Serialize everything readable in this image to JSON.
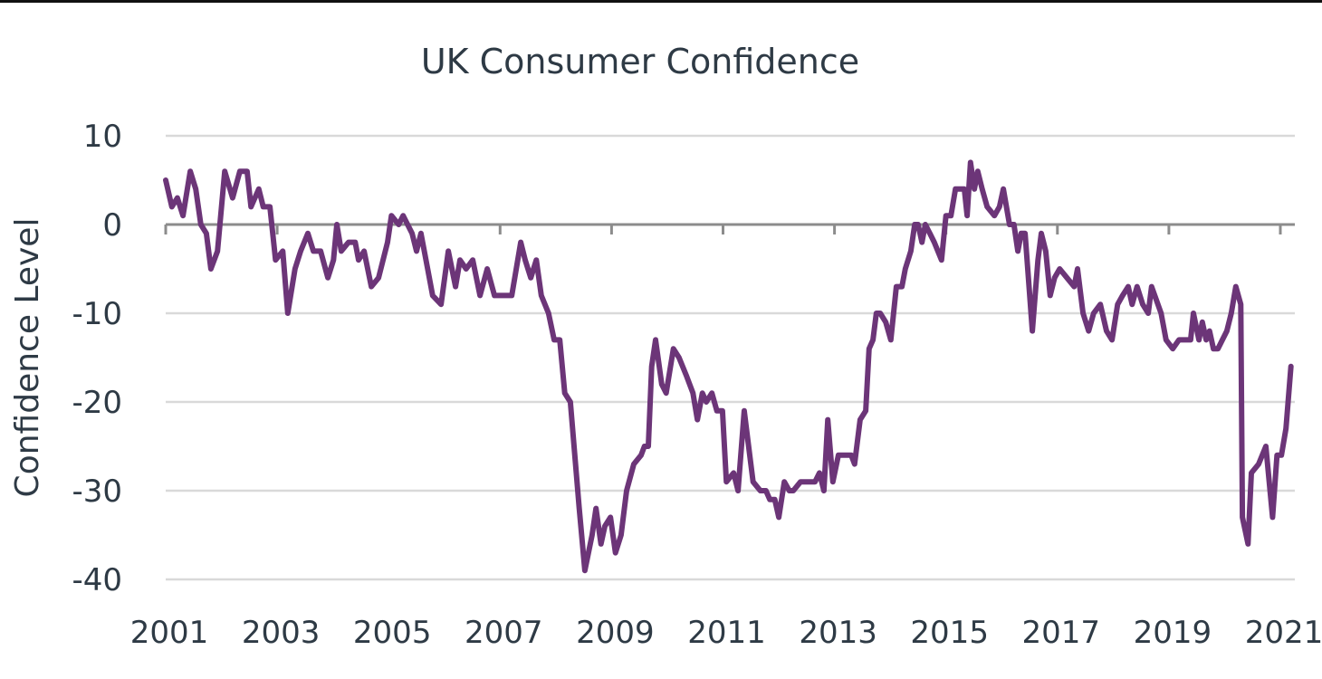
{
  "chart_data": {
    "type": "line",
    "title": "UK Consumer Confidence",
    "xlabel": "",
    "ylabel": "Confidence Level",
    "xlim": [
      2001,
      2021
    ],
    "ylim": [
      -40,
      10
    ],
    "yticks": [
      10,
      0,
      -10,
      -20,
      -30,
      -40
    ],
    "xticks": [
      2001,
      2003,
      2005,
      2007,
      2009,
      2011,
      2013,
      2015,
      2017,
      2019,
      2021
    ],
    "grid": true,
    "legend": "none",
    "colors": {
      "line": "#6c3578",
      "grid": "#d9d9d9",
      "zero_axis": "#8c8c8c",
      "text": "#2e3a45"
    },
    "series": [
      {
        "name": "UK Consumer Confidence",
        "points": [
          [
            2001.0,
            5
          ],
          [
            2001.11,
            2
          ],
          [
            2001.21,
            3
          ],
          [
            2001.31,
            1
          ],
          [
            2001.44,
            6
          ],
          [
            2001.54,
            4
          ],
          [
            2001.63,
            0
          ],
          [
            2001.73,
            -1
          ],
          [
            2001.81,
            -5
          ],
          [
            2001.93,
            -3
          ],
          [
            2002.06,
            6
          ],
          [
            2002.2,
            3
          ],
          [
            2002.33,
            6
          ],
          [
            2002.46,
            6
          ],
          [
            2002.53,
            2
          ],
          [
            2002.67,
            4
          ],
          [
            2002.75,
            2
          ],
          [
            2002.87,
            2
          ],
          [
            2002.97,
            -4
          ],
          [
            2003.1,
            -3
          ],
          [
            2003.19,
            -10
          ],
          [
            2003.32,
            -5
          ],
          [
            2003.42,
            -3
          ],
          [
            2003.55,
            -1
          ],
          [
            2003.65,
            -3
          ],
          [
            2003.78,
            -3
          ],
          [
            2003.91,
            -6
          ],
          [
            2004.01,
            -4
          ],
          [
            2004.07,
            0
          ],
          [
            2004.15,
            -3
          ],
          [
            2004.28,
            -2
          ],
          [
            2004.4,
            -2
          ],
          [
            2004.46,
            -4
          ],
          [
            2004.56,
            -3
          ],
          [
            2004.69,
            -7
          ],
          [
            2004.82,
            -6
          ],
          [
            2004.98,
            -2
          ],
          [
            2005.05,
            1
          ],
          [
            2005.18,
            0
          ],
          [
            2005.26,
            1
          ],
          [
            2005.42,
            -1
          ],
          [
            2005.5,
            -3
          ],
          [
            2005.58,
            -1
          ],
          [
            2005.7,
            -5
          ],
          [
            2005.79,
            -8
          ],
          [
            2005.94,
            -9
          ],
          [
            2006.07,
            -3
          ],
          [
            2006.2,
            -7
          ],
          [
            2006.28,
            -4
          ],
          [
            2006.39,
            -5
          ],
          [
            2006.51,
            -4
          ],
          [
            2006.64,
            -8
          ],
          [
            2006.77,
            -5
          ],
          [
            2006.9,
            -8
          ],
          [
            2007.06,
            -8
          ],
          [
            2007.21,
            -8
          ],
          [
            2007.37,
            -2
          ],
          [
            2007.45,
            -4
          ],
          [
            2007.55,
            -6
          ],
          [
            2007.65,
            -4
          ],
          [
            2007.74,
            -8
          ],
          [
            2007.87,
            -10
          ],
          [
            2007.97,
            -13
          ],
          [
            2008.07,
            -13
          ],
          [
            2008.16,
            -19
          ],
          [
            2008.26,
            -20
          ],
          [
            2008.42,
            -32
          ],
          [
            2008.52,
            -39
          ],
          [
            2008.65,
            -35
          ],
          [
            2008.72,
            -32
          ],
          [
            2008.81,
            -36
          ],
          [
            2008.88,
            -34
          ],
          [
            2008.98,
            -33
          ],
          [
            2009.07,
            -37
          ],
          [
            2009.17,
            -35
          ],
          [
            2009.27,
            -30
          ],
          [
            2009.4,
            -27
          ],
          [
            2009.53,
            -26
          ],
          [
            2009.59,
            -25
          ],
          [
            2009.66,
            -25
          ],
          [
            2009.72,
            -16
          ],
          [
            2009.79,
            -13
          ],
          [
            2009.9,
            -18
          ],
          [
            2009.98,
            -19
          ],
          [
            2010.11,
            -14
          ],
          [
            2010.21,
            -15
          ],
          [
            2010.34,
            -17
          ],
          [
            2010.46,
            -19
          ],
          [
            2010.54,
            -22
          ],
          [
            2010.63,
            -19
          ],
          [
            2010.7,
            -20
          ],
          [
            2010.8,
            -19
          ],
          [
            2010.89,
            -21
          ],
          [
            2010.99,
            -21
          ],
          [
            2011.06,
            -29
          ],
          [
            2011.19,
            -28
          ],
          [
            2011.27,
            -30
          ],
          [
            2011.38,
            -21
          ],
          [
            2011.48,
            -26
          ],
          [
            2011.54,
            -29
          ],
          [
            2011.67,
            -30
          ],
          [
            2011.77,
            -30
          ],
          [
            2011.84,
            -31
          ],
          [
            2011.93,
            -31
          ],
          [
            2012.0,
            -33
          ],
          [
            2012.1,
            -29
          ],
          [
            2012.19,
            -30
          ],
          [
            2012.26,
            -30
          ],
          [
            2012.39,
            -29
          ],
          [
            2012.65,
            -29
          ],
          [
            2012.73,
            -28
          ],
          [
            2012.81,
            -30
          ],
          [
            2012.88,
            -22
          ],
          [
            2012.97,
            -29
          ],
          [
            2013.07,
            -26
          ],
          [
            2013.3,
            -26
          ],
          [
            2013.36,
            -27
          ],
          [
            2013.46,
            -22
          ],
          [
            2013.56,
            -21
          ],
          [
            2013.62,
            -14
          ],
          [
            2013.69,
            -13
          ],
          [
            2013.75,
            -10
          ],
          [
            2013.82,
            -10
          ],
          [
            2013.92,
            -11
          ],
          [
            2014.01,
            -13
          ],
          [
            2014.11,
            -7
          ],
          [
            2014.21,
            -7
          ],
          [
            2014.27,
            -5
          ],
          [
            2014.37,
            -3
          ],
          [
            2014.44,
            0
          ],
          [
            2014.5,
            0
          ],
          [
            2014.57,
            -2
          ],
          [
            2014.63,
            0
          ],
          [
            2014.71,
            -1
          ],
          [
            2014.79,
            -2
          ],
          [
            2014.92,
            -4
          ],
          [
            2015.0,
            1
          ],
          [
            2015.09,
            1
          ],
          [
            2015.17,
            4
          ],
          [
            2015.33,
            4
          ],
          [
            2015.38,
            1
          ],
          [
            2015.44,
            7
          ],
          [
            2015.51,
            4
          ],
          [
            2015.57,
            6
          ],
          [
            2015.65,
            4
          ],
          [
            2015.74,
            2
          ],
          [
            2015.87,
            1
          ],
          [
            2015.96,
            2
          ],
          [
            2016.03,
            4
          ],
          [
            2016.14,
            0
          ],
          [
            2016.22,
            0
          ],
          [
            2016.29,
            -3
          ],
          [
            2016.35,
            -1
          ],
          [
            2016.42,
            -1
          ],
          [
            2016.55,
            -12
          ],
          [
            2016.65,
            -4
          ],
          [
            2016.71,
            -1
          ],
          [
            2016.79,
            -3
          ],
          [
            2016.87,
            -8
          ],
          [
            2016.95,
            -6
          ],
          [
            2017.04,
            -5
          ],
          [
            2017.17,
            -6
          ],
          [
            2017.3,
            -7
          ],
          [
            2017.36,
            -5
          ],
          [
            2017.46,
            -10
          ],
          [
            2017.56,
            -12
          ],
          [
            2017.65,
            -10
          ],
          [
            2017.77,
            -9
          ],
          [
            2017.88,
            -12
          ],
          [
            2017.98,
            -13
          ],
          [
            2018.08,
            -9
          ],
          [
            2018.17,
            -8
          ],
          [
            2018.27,
            -7
          ],
          [
            2018.34,
            -9
          ],
          [
            2018.43,
            -7
          ],
          [
            2018.53,
            -9
          ],
          [
            2018.63,
            -10
          ],
          [
            2018.69,
            -7
          ],
          [
            2018.86,
            -10
          ],
          [
            2018.95,
            -13
          ],
          [
            2019.07,
            -14
          ],
          [
            2019.18,
            -13
          ],
          [
            2019.31,
            -13
          ],
          [
            2019.39,
            -13
          ],
          [
            2019.44,
            -10
          ],
          [
            2019.54,
            -13
          ],
          [
            2019.6,
            -11
          ],
          [
            2019.67,
            -13
          ],
          [
            2019.73,
            -12
          ],
          [
            2019.8,
            -14
          ],
          [
            2019.88,
            -14
          ],
          [
            2019.96,
            -13
          ],
          [
            2020.04,
            -12
          ],
          [
            2020.12,
            -10
          ],
          [
            2020.2,
            -7
          ],
          [
            2020.29,
            -9
          ],
          [
            2020.32,
            -33
          ],
          [
            2020.42,
            -36
          ],
          [
            2020.48,
            -28
          ],
          [
            2020.61,
            -27
          ],
          [
            2020.74,
            -25
          ],
          [
            2020.86,
            -33
          ],
          [
            2020.94,
            -26
          ],
          [
            2021.02,
            -26
          ],
          [
            2021.1,
            -23
          ],
          [
            2021.19,
            -16
          ]
        ]
      }
    ]
  }
}
